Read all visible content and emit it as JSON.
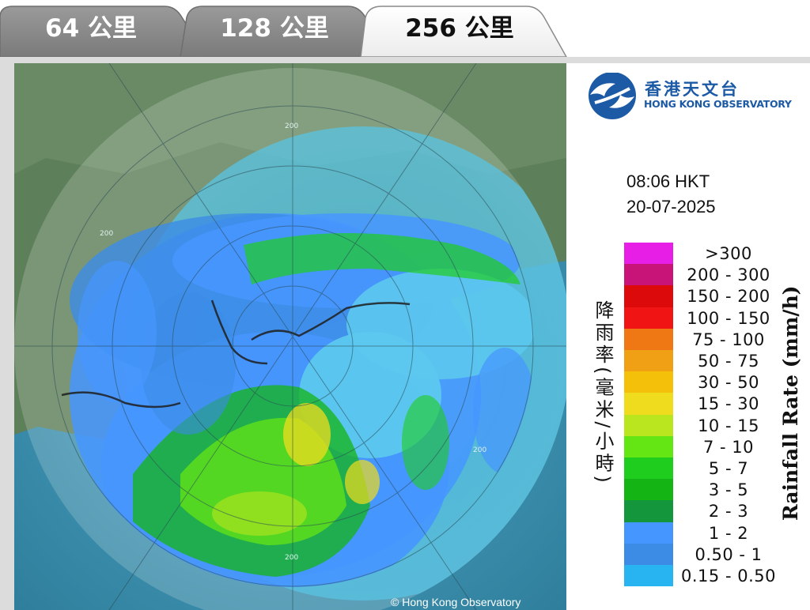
{
  "tabs": [
    {
      "label": "64 公里",
      "active": false
    },
    {
      "label": "128 公里",
      "active": false
    },
    {
      "label": "256 公里",
      "active": true
    }
  ],
  "radar": {
    "copyright": "© Hong Kong Observatory",
    "range_rings": [
      "200",
      "200",
      "200",
      "200"
    ]
  },
  "logo": {
    "name_cn": "香港天文台",
    "name_en": "HONG KONG OBSERVATORY",
    "brand_color": "#1c5aa6"
  },
  "timestamp": {
    "time": "08:06 HKT",
    "date": "20-07-2025"
  },
  "legend": {
    "title_cn": "降雨率(毫米/小時)",
    "title_en": "Rainfall Rate (mm/h)",
    "items": [
      {
        "range": ">300",
        "color": "#e61ee6"
      },
      {
        "range": "200 - 300",
        "color": "#c81478"
      },
      {
        "range": "150 - 200",
        "color": "#dc0a0a"
      },
      {
        "range": "100 - 150",
        "color": "#f01414"
      },
      {
        "range": "75 - 100",
        "color": "#f07814"
      },
      {
        "range": "50 - 75",
        "color": "#f0a014"
      },
      {
        "range": "30 - 50",
        "color": "#f5c00a"
      },
      {
        "range": "15 - 30",
        "color": "#f0dc1e"
      },
      {
        "range": "10 - 15",
        "color": "#b9e61e"
      },
      {
        "range": "7 - 10",
        "color": "#64e614"
      },
      {
        "range": "5 - 7",
        "color": "#1ecd1e"
      },
      {
        "range": "3 - 5",
        "color": "#14b414"
      },
      {
        "range": "2 - 3",
        "color": "#14963c"
      },
      {
        "range": "1 - 2",
        "color": "#4696ff"
      },
      {
        "range": "0.50 - 1",
        "color": "#3c8ce6"
      },
      {
        "range": "0.15 - 0.50",
        "color": "#28b4f0"
      }
    ]
  }
}
